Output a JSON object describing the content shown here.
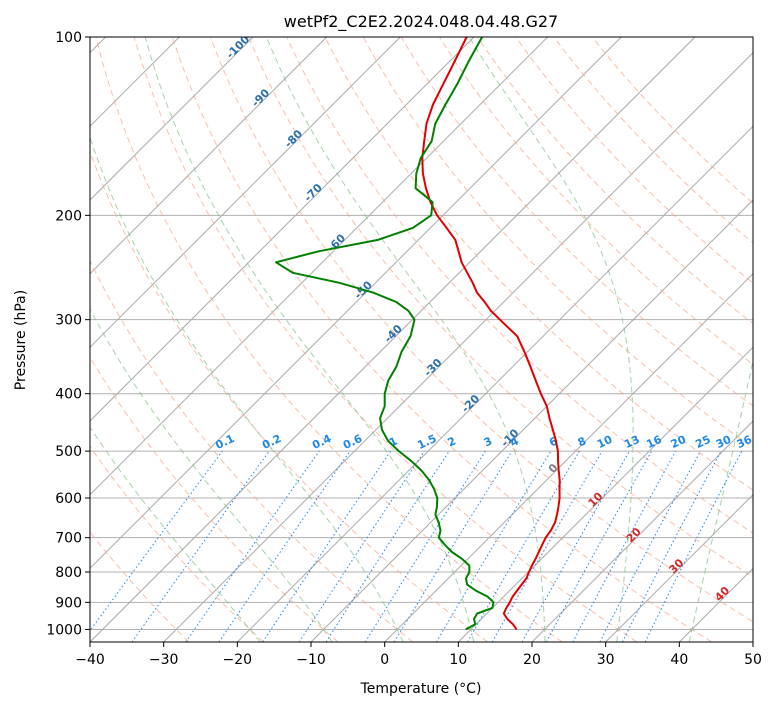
{
  "chart_data": {
    "type": "line",
    "subtype": "skew-t log-p diagram",
    "title": "wetPf2_C2E2.2024.048.04.48.G27",
    "xlabel": "Temperature (°C)",
    "ylabel": "Pressure (hPa)",
    "xlim": [
      -40,
      50
    ],
    "ylim": [
      1050,
      100
    ],
    "y_scale": "log",
    "grid": true,
    "x_ticks": [
      -40,
      -30,
      -20,
      -10,
      0,
      10,
      20,
      30,
      40,
      50
    ],
    "y_ticks": [
      100,
      200,
      300,
      400,
      500,
      600,
      700,
      800,
      900,
      1000
    ],
    "series": [
      {
        "color": "#e00000",
        "p": [
          1000,
          980,
          960,
          940,
          920,
          900,
          880,
          860,
          840,
          820,
          800,
          780,
          760,
          740,
          720,
          700,
          680,
          660,
          640,
          620,
          600,
          580,
          560,
          540,
          520,
          500,
          480,
          460,
          440,
          420,
          400,
          380,
          360,
          340,
          320,
          300,
          290,
          280,
          270,
          260,
          250,
          240,
          230,
          220,
          210,
          200,
          190,
          180,
          170,
          160,
          150,
          140,
          130,
          120,
          110,
          100
        ],
        "t": [
          16.2,
          15.0,
          13.5,
          12.3,
          11.9,
          11.6,
          11.2,
          11.0,
          10.8,
          10.6,
          10.1,
          9.6,
          9.2,
          8.7,
          8.2,
          7.7,
          7.4,
          6.9,
          6.1,
          5.2,
          4.2,
          3.0,
          1.8,
          0.4,
          -1.0,
          -2.4,
          -4.1,
          -6.0,
          -8.0,
          -10.0,
          -12.5,
          -15.0,
          -17.6,
          -20.4,
          -23.5,
          -28.1,
          -30.5,
          -32.6,
          -34.9,
          -36.8,
          -38.9,
          -41.1,
          -43.0,
          -45.0,
          -47.8,
          -50.8,
          -53.5,
          -56.0,
          -58.4,
          -60.6,
          -62.6,
          -64.7,
          -66.4,
          -67.8,
          -69.3,
          -71.0
        ]
      },
      {
        "color": "#008000",
        "p": [
          1000,
          980,
          960,
          940,
          920,
          900,
          880,
          860,
          840,
          820,
          800,
          780,
          760,
          740,
          720,
          700,
          680,
          660,
          640,
          620,
          600,
          580,
          560,
          540,
          520,
          500,
          480,
          460,
          440,
          420,
          400,
          380,
          360,
          340,
          320,
          300,
          290,
          280,
          270,
          260,
          250,
          240,
          230,
          220,
          210,
          200,
          190,
          180,
          170,
          160,
          150,
          140,
          130,
          120,
          110,
          100
        ],
        "t": [
          9.3,
          9.9,
          9.0,
          8.7,
          10.0,
          9.4,
          7.8,
          5.4,
          3.4,
          2.4,
          2.0,
          1.1,
          -0.8,
          -3.1,
          -5.0,
          -6.8,
          -7.6,
          -8.9,
          -10.4,
          -11.3,
          -12.4,
          -14.0,
          -15.9,
          -18.2,
          -20.9,
          -24.0,
          -26.9,
          -29.2,
          -31.0,
          -32.0,
          -33.7,
          -35.0,
          -35.8,
          -37.1,
          -38.0,
          -39.7,
          -41.7,
          -44.6,
          -49.0,
          -54.9,
          -62.6,
          -66.3,
          -62.0,
          -55.5,
          -52.4,
          -51.6,
          -53.2,
          -57.4,
          -59.3,
          -60.8,
          -61.6,
          -63.5,
          -64.7,
          -65.9,
          -67.4,
          -68.9
        ]
      }
    ],
    "background_lines": {
      "isotherms": {
        "color": "#aaaaaa",
        "style": "solid",
        "values": [
          -130,
          -120,
          -110,
          -100,
          -90,
          -80,
          -70,
          -60,
          -50,
          -40,
          -30,
          -20,
          -10,
          0,
          10,
          20,
          30,
          40,
          50
        ]
      },
      "dry_adiabats": {
        "color": "#f4a582",
        "style": "dashed",
        "values": [
          -30,
          -20,
          -10,
          0,
          10,
          20,
          30,
          40,
          50,
          60,
          70,
          80,
          90,
          100,
          110,
          120,
          130,
          140,
          150
        ]
      },
      "moist_adiabats": {
        "color": "#7fbf7f",
        "style": "dashed",
        "values": [
          -20,
          -10,
          0,
          10,
          20,
          30,
          40
        ]
      },
      "mixing_ratio_lines": {
        "color": "#1e88e5",
        "style": "dotted",
        "values": [
          0.1,
          0.2,
          0.4,
          0.6,
          1,
          1.5,
          2,
          3,
          4,
          6,
          8,
          10,
          13,
          16,
          20,
          25,
          30,
          36
        ]
      },
      "mixing_ratio_labels": [
        "0.1",
        "0.2",
        "0.4",
        "0.6",
        "1",
        "1.5",
        "2",
        "3",
        "4",
        "6",
        "8",
        "10",
        "13",
        "16",
        "20",
        "25",
        "30",
        "36"
      ],
      "isotherm_labels_blue": [
        "-100",
        "-90",
        "-80",
        "-70",
        "-60",
        "-50",
        "-40",
        "-30",
        "-20",
        "-10"
      ],
      "isotherm_labels_gray": [
        "0"
      ],
      "isotherm_labels_red": [
        "10",
        "20",
        "30",
        "40"
      ],
      "colors": {
        "blue_label": "#2a6fb0",
        "gray_label": "#808080",
        "red_label": "#d62728"
      }
    }
  }
}
